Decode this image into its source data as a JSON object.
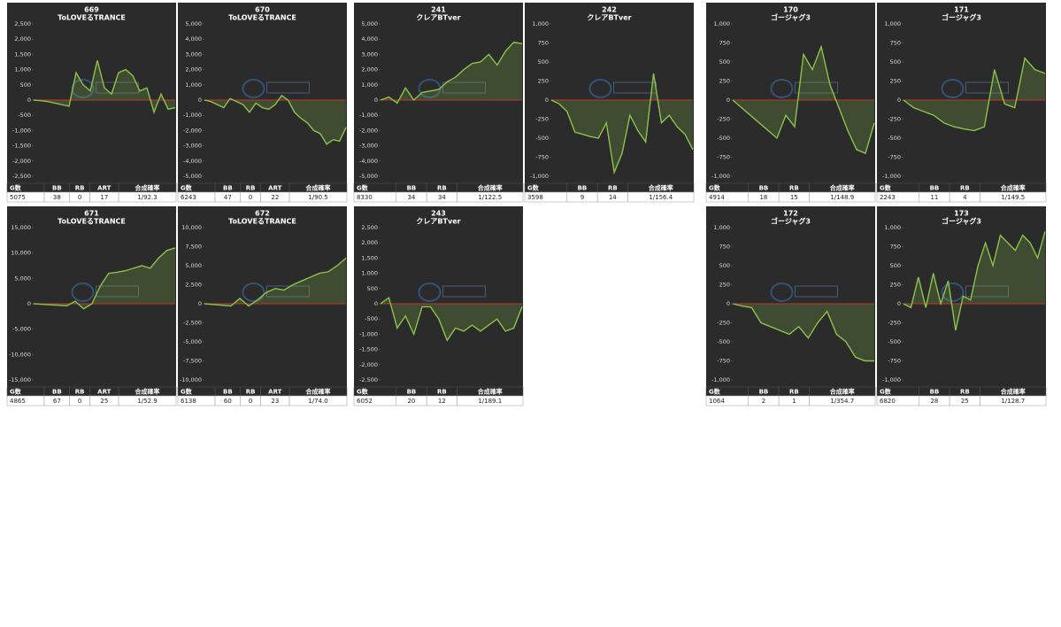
{
  "chart_data": [
    {
      "type": "line",
      "title": "669",
      "subtitle": "ToLOVEるTRANCE",
      "color": "#8bc34a",
      "ylim": [
        -2500,
        2500
      ],
      "yticks": [
        {
          "value": 2500,
          "label": "2,500"
        },
        {
          "value": 2000,
          "label": "2,000"
        },
        {
          "value": 1500,
          "label": "1,500"
        },
        {
          "value": 1000,
          "label": "1,000"
        },
        500,
        0,
        -500,
        {
          "value": -1000,
          "label": "-1,000"
        },
        {
          "value": -1500,
          "label": "-1,500"
        },
        {
          "value": -2000,
          "label": "-2,000"
        },
        {
          "value": -2500,
          "label": "-2,500"
        }
      ],
      "values": [
        0,
        -20,
        -50,
        -100,
        -150,
        -200,
        900,
        500,
        300,
        1300,
        400,
        200,
        900,
        1000,
        800,
        300,
        400,
        -400,
        200,
        -300,
        -250
      ],
      "table": {
        "header": [
          "G数",
          "BB",
          "RB",
          "ART",
          "合成確率"
        ],
        "row": [
          "5075",
          "38",
          "0",
          "17",
          "1/92.3"
        ]
      }
    },
    {
      "type": "line",
      "title": "670",
      "subtitle": "ToLOVEるTRANCE",
      "color": "#8bc34a",
      "ylim": [
        -5000,
        5000
      ],
      "yticks": [
        {
          "value": 5000,
          "label": "5,000"
        },
        {
          "value": 4000,
          "label": "4,000"
        },
        {
          "value": 3000,
          "label": "3,000"
        },
        {
          "value": 2000,
          "label": "2,000"
        },
        {
          "value": 1000,
          "label": "1,000"
        },
        0,
        {
          "value": -1000,
          "label": "-1,000"
        },
        {
          "value": -2000,
          "label": "-2,000"
        },
        {
          "value": -3000,
          "label": "-3,000"
        },
        {
          "value": -4000,
          "label": "-4,000"
        },
        {
          "value": -5000,
          "label": "-5,000"
        }
      ],
      "values": [
        0,
        -100,
        -300,
        -500,
        100,
        -100,
        -300,
        -800,
        -200,
        -500,
        -600,
        -300,
        300,
        0,
        -800,
        -1200,
        -1500,
        -2000,
        -2200,
        -2900,
        -2600,
        -2700,
        -1800
      ],
      "table": {
        "header": [
          "G数",
          "BB",
          "RB",
          "ART",
          "合成確率"
        ],
        "row": [
          "6243",
          "47",
          "0",
          "22",
          "1/90.5"
        ]
      }
    },
    {
      "type": "line",
      "title": "671",
      "subtitle": "ToLOVEるTRANCE",
      "color": "#8bc34a",
      "ylim": [
        -15000,
        15000
      ],
      "yticks": [
        {
          "value": 15000,
          "label": "15,000"
        },
        {
          "value": 10000,
          "label": "10,000"
        },
        {
          "value": 5000,
          "label": "5,000"
        },
        0,
        {
          "value": -5000,
          "label": "-5,000"
        },
        {
          "value": -10000,
          "label": "-10,000"
        },
        {
          "value": -15000,
          "label": "-15,000"
        }
      ],
      "values": [
        0,
        -100,
        -200,
        -300,
        -400,
        500,
        -1000,
        0,
        3500,
        6000,
        6200,
        6500,
        7000,
        7500,
        7000,
        9000,
        10500,
        11000
      ],
      "table": {
        "header": [
          "G数",
          "BB",
          "RB",
          "ART",
          "合成確率"
        ],
        "row": [
          "4865",
          "67",
          "0",
          "25",
          "1/52.9"
        ]
      }
    },
    {
      "type": "line",
      "title": "672",
      "subtitle": "ToLOVEるTRANCE",
      "color": "#8bc34a",
      "ylim": [
        -10000,
        10000
      ],
      "yticks": [
        {
          "value": 10000,
          "label": "10,000"
        },
        {
          "value": 7500,
          "label": "7,500"
        },
        {
          "value": 5000,
          "label": "5,000"
        },
        {
          "value": 2500,
          "label": "2,500"
        },
        0,
        {
          "value": -2500,
          "label": "-2,500"
        },
        {
          "value": -5000,
          "label": "-5,000"
        },
        {
          "value": -7500,
          "label": "-7,500"
        },
        {
          "value": -10000,
          "label": "-10,000"
        }
      ],
      "values": [
        0,
        -100,
        -200,
        -300,
        700,
        -300,
        500,
        1500,
        2000,
        1800,
        2500,
        3000,
        3500,
        4000,
        4200,
        5000,
        6000
      ],
      "table": {
        "header": [
          "G数",
          "BB",
          "RB",
          "ART",
          "合成確率"
        ],
        "row": [
          "6138",
          "60",
          "0",
          "23",
          "1/74.0"
        ]
      }
    },
    {
      "type": "line",
      "title": "241",
      "subtitle": "クレアBTver",
      "color": "#8bc34a",
      "ylim": [
        -5000,
        5000
      ],
      "yticks": [
        {
          "value": 5000,
          "label": "5,000"
        },
        {
          "value": 4000,
          "label": "4,000"
        },
        {
          "value": 3000,
          "label": "3,000"
        },
        {
          "value": 2000,
          "label": "2,000"
        },
        {
          "value": 1000,
          "label": "1,000"
        },
        0,
        {
          "value": -1000,
          "label": "-1,000"
        },
        {
          "value": -2000,
          "label": "-2,000"
        },
        {
          "value": -3000,
          "label": "-3,000"
        },
        {
          "value": -4000,
          "label": "-4,000"
        },
        {
          "value": -5000,
          "label": "-5,000"
        }
      ],
      "values": [
        0,
        200,
        -200,
        800,
        0,
        500,
        600,
        700,
        1200,
        1500,
        2000,
        2400,
        2500,
        3000,
        2300,
        3200,
        3800,
        3700
      ],
      "table": {
        "header": [
          "G数",
          "BB",
          "RB",
          "合成確率"
        ],
        "row": [
          "8330",
          "34",
          "34",
          "1/122.5"
        ]
      }
    },
    {
      "type": "line",
      "title": "242",
      "subtitle": "クレアBTver",
      "color": "#8bc34a",
      "ylim": [
        -1000,
        1000
      ],
      "yticks": [
        {
          "value": 1000,
          "label": "1,000"
        },
        750,
        500,
        250,
        0,
        -250,
        -500,
        -750,
        {
          "value": -1000,
          "label": "-1,000"
        }
      ],
      "values": [
        0,
        -50,
        -150,
        -420,
        -450,
        -480,
        -500,
        -300,
        -950,
        -700,
        -200,
        -400,
        -550,
        350,
        -300,
        -200,
        -350,
        -450,
        -650
      ],
      "table": {
        "header": [
          "G数",
          "BB",
          "RB",
          "合成確率"
        ],
        "row": [
          "3598",
          "9",
          "14",
          "1/156.4"
        ]
      }
    },
    {
      "type": "line",
      "title": "243",
      "subtitle": "クレアBTver",
      "color": "#8bc34a",
      "ylim": [
        -2500,
        2500
      ],
      "yticks": [
        {
          "value": 2500,
          "label": "2,500"
        },
        {
          "value": 2000,
          "label": "2,000"
        },
        {
          "value": 1500,
          "label": "1,500"
        },
        {
          "value": 1000,
          "label": "1,000"
        },
        500,
        0,
        -500,
        {
          "value": -1000,
          "label": "-1,000"
        },
        {
          "value": -1500,
          "label": "-1,500"
        },
        {
          "value": -2000,
          "label": "-2,000"
        },
        {
          "value": -2500,
          "label": "-2,500"
        }
      ],
      "values": [
        0,
        200,
        -800,
        -400,
        -1000,
        -100,
        -100,
        -500,
        -1200,
        -800,
        -900,
        -700,
        -900,
        -700,
        -500,
        -900,
        -800,
        -100
      ],
      "table": {
        "header": [
          "G数",
          "BB",
          "RB",
          "合成確率"
        ],
        "row": [
          "6052",
          "20",
          "12",
          "1/189.1"
        ]
      }
    },
    {
      "type": "line",
      "title": "170",
      "subtitle": "ゴージャグ3",
      "color": "#8bc34a",
      "ylim": [
        -1000,
        1000
      ],
      "yticks": [
        {
          "value": 1000,
          "label": "1,000"
        },
        750,
        500,
        250,
        0,
        -250,
        -500,
        -750,
        {
          "value": -1000,
          "label": "-1,000"
        }
      ],
      "values": [
        0,
        -100,
        -200,
        -300,
        -400,
        -500,
        -200,
        -350,
        600,
        400,
        700,
        200,
        -100,
        -400,
        -650,
        -700,
        -300
      ],
      "table": {
        "header": [
          "G数",
          "BB",
          "RB",
          "合成確率"
        ],
        "row": [
          "4914",
          "18",
          "15",
          "1/148.9"
        ]
      }
    },
    {
      "type": "line",
      "title": "171",
      "subtitle": "ゴージャグ3",
      "color": "#8bc34a",
      "ylim": [
        -1000,
        1000
      ],
      "yticks": [
        {
          "value": 1000,
          "label": "1,000"
        },
        750,
        500,
        250,
        0,
        -250,
        -500,
        -750,
        {
          "value": -1000,
          "label": "-1,000"
        }
      ],
      "values": [
        0,
        -100,
        -150,
        -200,
        -300,
        -350,
        -380,
        -400,
        -350,
        400,
        -50,
        -100,
        550,
        400,
        350
      ],
      "table": {
        "header": [
          "G数",
          "BB",
          "RB",
          "合成確率"
        ],
        "row": [
          "2243",
          "11",
          "4",
          "1/149.5"
        ]
      }
    },
    {
      "type": "line",
      "title": "172",
      "subtitle": "ゴージャグ3",
      "color": "#8bc34a",
      "ylim": [
        -1000,
        1000
      ],
      "yticks": [
        {
          "value": 1000,
          "label": "1,000"
        },
        750,
        500,
        250,
        0,
        -250,
        -500,
        -750,
        {
          "value": -1000,
          "label": "-1,000"
        }
      ],
      "values": [
        0,
        -30,
        -50,
        -250,
        -300,
        -350,
        -400,
        -300,
        -450,
        -250,
        -100,
        -400,
        -500,
        -700,
        -750,
        -750
      ],
      "table": {
        "header": [
          "G数",
          "BB",
          "RB",
          "合成確率"
        ],
        "row": [
          "1064",
          "2",
          "1",
          "1/354.7"
        ]
      }
    },
    {
      "type": "line",
      "title": "173",
      "subtitle": "ゴージャグ3",
      "color": "#8bc34a",
      "ylim": [
        -1000,
        1000
      ],
      "yticks": [
        {
          "value": 1000,
          "label": "1,000"
        },
        750,
        500,
        250,
        0,
        -250,
        -500,
        -750,
        {
          "value": -1000,
          "label": "-1,000"
        }
      ],
      "values": [
        0,
        -50,
        350,
        -50,
        400,
        0,
        300,
        -350,
        100,
        50,
        500,
        800,
        500,
        900,
        800,
        700,
        900,
        800,
        600,
        950
      ],
      "table": {
        "header": [
          "G数",
          "BB",
          "RB",
          "合成確率"
        ],
        "row": [
          "6820",
          "28",
          "25",
          "1/128.7"
        ]
      }
    }
  ]
}
